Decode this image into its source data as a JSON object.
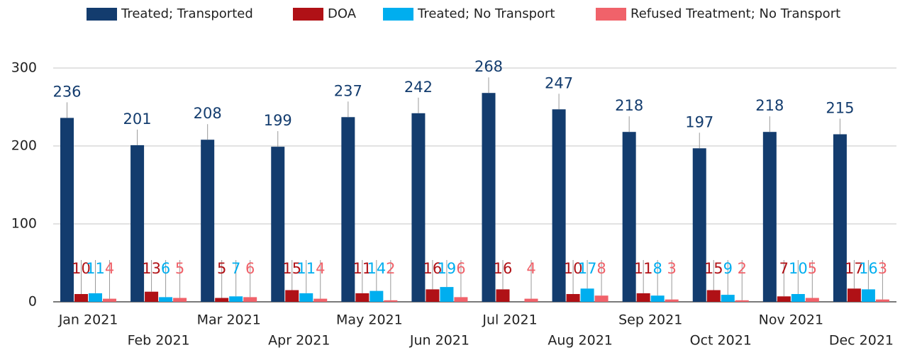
{
  "chart_data": {
    "type": "bar",
    "categories": [
      "Jan 2021",
      "Feb 2021",
      "Mar 2021",
      "Apr 2021",
      "May 2021",
      "Jun 2021",
      "Jul 2021",
      "Aug 2021",
      "Sep 2021",
      "Oct 2021",
      "Nov 2021",
      "Dec 2021"
    ],
    "series": [
      {
        "name": "Treated; Transported",
        "color": "#133c6e",
        "values": [
          236,
          201,
          208,
          199,
          237,
          242,
          268,
          247,
          218,
          197,
          218,
          215
        ]
      },
      {
        "name": "DOA",
        "color": "#b01116",
        "values": [
          10,
          13,
          5,
          15,
          11,
          16,
          16,
          10,
          11,
          15,
          7,
          17
        ]
      },
      {
        "name": "Treated; No Transport",
        "color": "#00aeef",
        "values": [
          11,
          6,
          7,
          11,
          14,
          19,
          null,
          17,
          8,
          9,
          10,
          16
        ]
      },
      {
        "name": "Refused Treatment; No Transport",
        "color": "#f0626a",
        "values": [
          4,
          5,
          6,
          4,
          2,
          6,
          4,
          8,
          3,
          2,
          5,
          3
        ]
      }
    ],
    "ylim": [
      0,
      300
    ],
    "yticks": [
      0,
      100,
      200,
      300
    ],
    "grid": true,
    "legend": "top"
  }
}
